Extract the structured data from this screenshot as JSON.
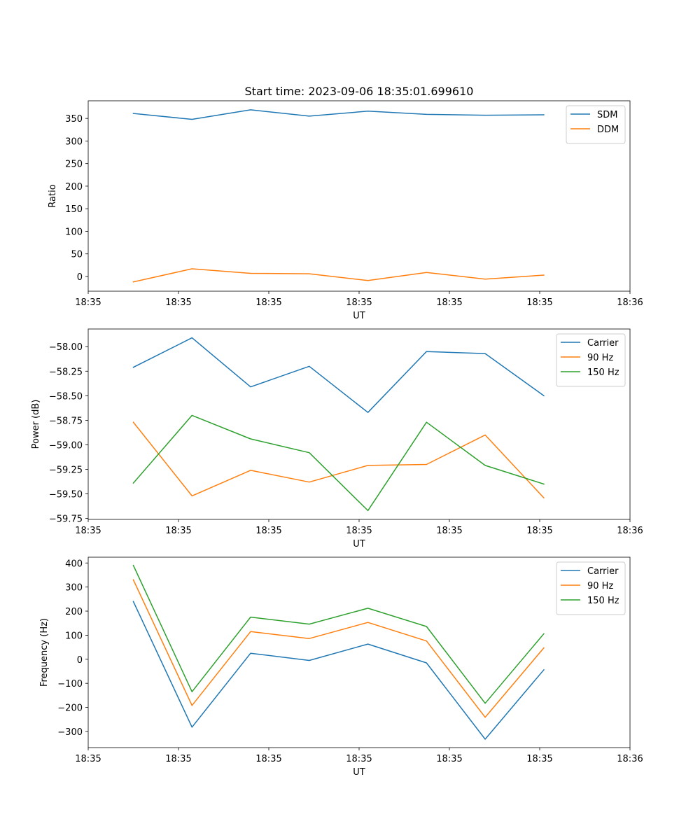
{
  "title": "Start time: 2023-09-06 18:35:01.699610",
  "colors": {
    "blue": "#1f77b4",
    "orange": "#ff7f0e",
    "green": "#2ca02c"
  },
  "chart_data": [
    {
      "type": "line",
      "xlabel": "UT",
      "ylabel": "Ratio",
      "x": [
        1,
        2,
        3,
        4,
        5,
        6,
        7,
        8
      ],
      "xlim": [
        0.23,
        9.47
      ],
      "x_ticks": [
        0.23,
        1.77,
        3.31,
        4.85,
        6.39,
        7.93,
        9.47
      ],
      "x_tick_labels": [
        "18:35",
        "18:35",
        "18:35",
        "18:35",
        "18:35",
        "18:35",
        "18:36"
      ],
      "ylim": [
        -32.6,
        389
      ],
      "y_ticks": [
        0,
        50,
        100,
        150,
        200,
        250,
        300,
        350
      ],
      "y_tick_labels": [
        "0",
        "50",
        "100",
        "150",
        "200",
        "250",
        "300",
        "350"
      ],
      "legend_position": "top-right",
      "series": [
        {
          "name": "SDM",
          "color": "#1f77b4",
          "values": [
            361,
            348,
            369,
            355,
            366,
            359,
            357,
            358
          ]
        },
        {
          "name": "DDM",
          "color": "#ff7f0e",
          "values": [
            -12,
            17,
            7,
            6,
            -9,
            9,
            -6,
            3
          ]
        }
      ]
    },
    {
      "type": "line",
      "xlabel": "UT",
      "ylabel": "Power (dB)",
      "x": [
        1,
        2,
        3,
        4,
        5,
        6,
        7,
        8
      ],
      "xlim": [
        0.23,
        9.47
      ],
      "x_ticks": [
        0.23,
        1.77,
        3.31,
        4.85,
        6.39,
        7.93,
        9.47
      ],
      "x_tick_labels": [
        "18:35",
        "18:35",
        "18:35",
        "18:35",
        "18:35",
        "18:35",
        "18:36"
      ],
      "ylim": [
        -59.76,
        -57.82
      ],
      "y_ticks": [
        -58.0,
        -58.25,
        -58.5,
        -58.75,
        -59.0,
        -59.25,
        -59.5,
        -59.75
      ],
      "y_tick_labels": [
        "−58.00",
        "−58.25",
        "−58.50",
        "−58.75",
        "−59.00",
        "−59.25",
        "−59.50",
        "−59.75"
      ],
      "legend_position": "top-right",
      "series": [
        {
          "name": "Carrier",
          "color": "#1f77b4",
          "values": [
            -58.21,
            -57.91,
            -58.41,
            -58.2,
            -58.67,
            -58.05,
            -58.07,
            -58.5
          ]
        },
        {
          "name": "90 Hz",
          "color": "#ff7f0e",
          "values": [
            -58.77,
            -59.52,
            -59.26,
            -59.38,
            -59.21,
            -59.2,
            -58.9,
            -59.54
          ]
        },
        {
          "name": "150 Hz",
          "color": "#2ca02c",
          "values": [
            -59.39,
            -58.7,
            -58.94,
            -59.08,
            -59.67,
            -58.77,
            -59.21,
            -59.4
          ]
        }
      ]
    },
    {
      "type": "line",
      "xlabel": "UT",
      "ylabel": "Frequency (Hz)",
      "x": [
        1,
        2,
        3,
        4,
        5,
        6,
        7,
        8
      ],
      "xlim": [
        0.23,
        9.47
      ],
      "x_ticks": [
        0.23,
        1.77,
        3.31,
        4.85,
        6.39,
        7.93,
        9.47
      ],
      "x_tick_labels": [
        "18:35",
        "18:35",
        "18:35",
        "18:35",
        "18:35",
        "18:35",
        "18:36"
      ],
      "ylim": [
        -367,
        424
      ],
      "y_ticks": [
        400,
        300,
        200,
        100,
        0,
        -100,
        -200,
        -300
      ],
      "y_tick_labels": [
        "400",
        "300",
        "200",
        "100",
        "0",
        "−100",
        "−200",
        "−300"
      ],
      "legend_position": "top-right",
      "series": [
        {
          "name": "Carrier",
          "color": "#1f77b4",
          "values": [
            240,
            -282,
            25,
            -5,
            63,
            -15,
            -332,
            -44
          ]
        },
        {
          "name": "90 Hz",
          "color": "#ff7f0e",
          "values": [
            330,
            -192,
            115,
            86,
            153,
            76,
            -241,
            47
          ]
        },
        {
          "name": "150 Hz",
          "color": "#2ca02c",
          "values": [
            390,
            -135,
            175,
            146,
            212,
            136,
            -183,
            106
          ]
        }
      ]
    }
  ]
}
